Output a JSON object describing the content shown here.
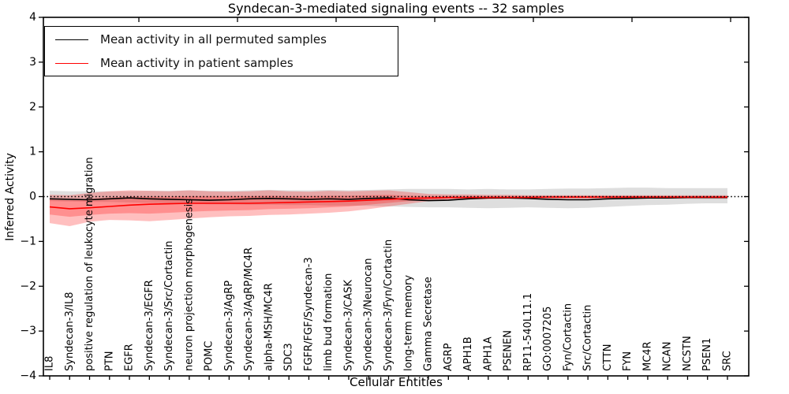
{
  "figure": {
    "background": "#ffffff"
  },
  "chart_data": {
    "type": "line",
    "title": "Syndecan-3-mediated signaling events -- 32 samples",
    "xlabel": "Cellular Entities",
    "ylabel": "Inferred Activity",
    "ylim": [
      -4,
      4
    ],
    "yticks": [
      -4,
      -3,
      -2,
      -1,
      0,
      1,
      2,
      3,
      4
    ],
    "grid": false,
    "zero_line": {
      "y": 0,
      "style": "dotted",
      "color": "#000000"
    },
    "legend": {
      "position": "upper left",
      "entries": [
        {
          "label": "Mean activity in all permuted samples",
          "color": "#000000"
        },
        {
          "label": "Mean activity in patient samples",
          "color": "#ff0000"
        }
      ]
    },
    "categories": [
      "IL8",
      "Syndecan-3/IL8",
      "positive regulation of leukocyte migration",
      "PTN",
      "EGFR",
      "Syndecan-3/EGFR",
      "Syndecan-3/Src/Cortactin",
      "neuron projection morphogenesis",
      "POMC",
      "Syndecan-3/AgRP",
      "Syndecan-3/AgRP/MC4R",
      "alpha-MSH/MC4R",
      "SDC3",
      "FGFR/FGF/Syndecan-3",
      "limb bud formation",
      "Syndecan-3/CASK",
      "Syndecan-3/Neurocan",
      "Syndecan-3/Fyn/Cortactin",
      "long-term memory",
      "Gamma Secretase",
      "AGRP",
      "APH1B",
      "APH1A",
      "PSENEN",
      "RP11-540L11.1",
      "GO:0007205",
      "Fyn/Cortactin",
      "Src/Cortactin",
      "CTTN",
      "FYN",
      "MC4R",
      "NCAN",
      "NCSTN",
      "PSEN1",
      "SRC"
    ],
    "series": [
      {
        "name": "permuted-band",
        "kind": "band",
        "color": "rgba(0,0,0,0.13)",
        "upper": [
          0.13,
          0.12,
          0.12,
          0.12,
          0.12,
          0.13,
          0.13,
          0.14,
          0.13,
          0.13,
          0.14,
          0.15,
          0.14,
          0.14,
          0.15,
          0.14,
          0.15,
          0.16,
          0.17,
          0.17,
          0.17,
          0.16,
          0.17,
          0.16,
          0.16,
          0.17,
          0.18,
          0.18,
          0.19,
          0.2,
          0.2,
          0.19,
          0.19,
          0.19,
          0.19
        ],
        "lower": [
          -0.1,
          -0.11,
          -0.12,
          -0.12,
          -0.13,
          -0.14,
          -0.15,
          -0.16,
          -0.17,
          -0.17,
          -0.18,
          -0.18,
          -0.19,
          -0.19,
          -0.2,
          -0.2,
          -0.21,
          -0.22,
          -0.23,
          -0.24,
          -0.24,
          -0.25,
          -0.26,
          -0.25,
          -0.24,
          -0.25,
          -0.26,
          -0.25,
          -0.23,
          -0.21,
          -0.19,
          -0.18,
          -0.16,
          -0.15,
          -0.15
        ]
      },
      {
        "name": "patient-band-outer",
        "kind": "band",
        "color": "rgba(255,0,0,0.25)",
        "upper": [
          0.04,
          0.03,
          0.08,
          0.12,
          0.14,
          0.13,
          0.12,
          0.14,
          0.12,
          0.11,
          0.12,
          0.14,
          0.12,
          0.11,
          0.13,
          0.12,
          0.13,
          0.14,
          0.1,
          0.06,
          0.05,
          0.05,
          0.04,
          0.04,
          0.03,
          0.03,
          0.03,
          0.03,
          0.03,
          0.03,
          0.03,
          0.03,
          0.03,
          0.03,
          0.03
        ],
        "lower": [
          -0.59,
          -0.66,
          -0.56,
          -0.52,
          -0.53,
          -0.55,
          -0.52,
          -0.49,
          -0.46,
          -0.44,
          -0.43,
          -0.41,
          -0.4,
          -0.38,
          -0.36,
          -0.33,
          -0.28,
          -0.22,
          -0.16,
          -0.1,
          -0.07,
          -0.06,
          -0.06,
          -0.05,
          -0.05,
          -0.05,
          -0.05,
          -0.05,
          -0.05,
          -0.05,
          -0.05,
          -0.05,
          -0.05,
          -0.05,
          -0.05
        ]
      },
      {
        "name": "patient-band-inner",
        "kind": "band",
        "color": "rgba(255,0,0,0.25)",
        "upper": [
          -0.06,
          -0.08,
          -0.05,
          -0.02,
          0.0,
          0.0,
          0.0,
          0.01,
          0.01,
          0.01,
          0.01,
          0.02,
          0.01,
          0.01,
          0.02,
          0.02,
          0.03,
          0.04,
          0.02,
          0.01,
          0.01,
          0.01,
          0.01,
          0.01,
          0.01,
          0.01,
          0.01,
          0.01,
          0.01,
          0.01,
          0.01,
          0.01,
          0.01,
          0.01,
          0.01
        ],
        "lower": [
          -0.4,
          -0.45,
          -0.41,
          -0.38,
          -0.37,
          -0.38,
          -0.36,
          -0.34,
          -0.32,
          -0.31,
          -0.3,
          -0.28,
          -0.27,
          -0.26,
          -0.24,
          -0.22,
          -0.18,
          -0.14,
          -0.1,
          -0.07,
          -0.05,
          -0.04,
          -0.04,
          -0.04,
          -0.03,
          -0.03,
          -0.03,
          -0.03,
          -0.03,
          -0.03,
          -0.03,
          -0.03,
          -0.03,
          -0.03,
          -0.03
        ]
      },
      {
        "name": "Mean activity in all permuted samples",
        "kind": "line",
        "color": "#000000",
        "values": [
          -0.05,
          -0.06,
          -0.07,
          -0.05,
          -0.03,
          -0.05,
          -0.06,
          -0.07,
          -0.08,
          -0.07,
          -0.05,
          -0.04,
          -0.05,
          -0.06,
          -0.05,
          -0.06,
          -0.04,
          -0.03,
          -0.07,
          -0.09,
          -0.08,
          -0.05,
          -0.03,
          -0.03,
          -0.04,
          -0.06,
          -0.07,
          -0.07,
          -0.05,
          -0.04,
          -0.03,
          -0.03,
          -0.02,
          -0.02,
          -0.02
        ]
      },
      {
        "name": "Mean activity in patient samples",
        "kind": "line",
        "color": "#ff0000",
        "values": [
          -0.23,
          -0.27,
          -0.25,
          -0.22,
          -0.19,
          -0.17,
          -0.16,
          -0.15,
          -0.15,
          -0.15,
          -0.15,
          -0.14,
          -0.13,
          -0.12,
          -0.11,
          -0.1,
          -0.08,
          -0.06,
          -0.04,
          -0.03,
          -0.02,
          -0.02,
          -0.02,
          -0.02,
          -0.02,
          -0.01,
          -0.01,
          -0.01,
          -0.01,
          -0.01,
          -0.01,
          -0.01,
          -0.01,
          -0.01,
          -0.01
        ]
      }
    ]
  }
}
